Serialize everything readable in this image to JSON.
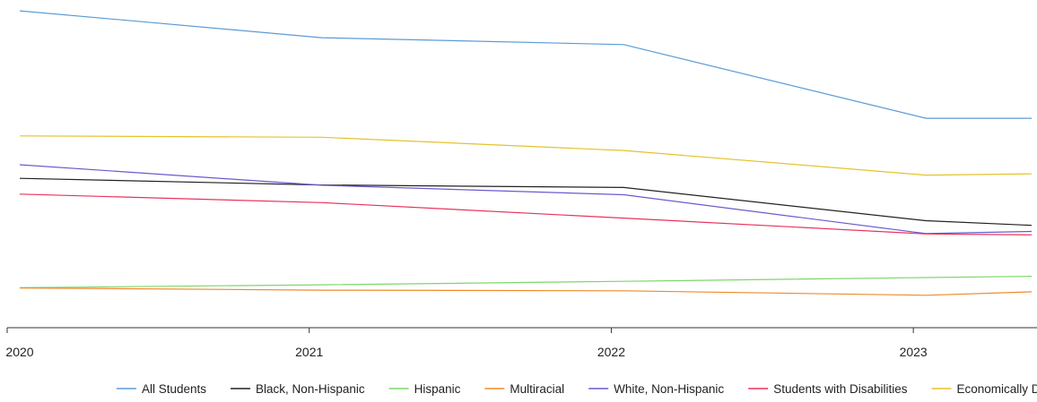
{
  "chart_data": {
    "type": "line",
    "title": "",
    "xlabel": "",
    "ylabel": "",
    "categories": [
      "2020",
      "2021",
      "2022",
      "2023"
    ],
    "x": [
      2020,
      2021,
      2022,
      2023,
      2023.35
    ],
    "xlim": [
      2020,
      2023.35
    ],
    "ylim": [
      0,
      100
    ],
    "grid": false,
    "legend_position": "bottom",
    "series": [
      {
        "name": "All Students",
        "color": "#5B9BD5",
        "values": [
          98,
          89.5,
          87.3,
          64,
          64
        ]
      },
      {
        "name": "Black, Non-Hispanic",
        "color": "#222222",
        "values": [
          45,
          42.9,
          42.1,
          31.6,
          30.1
        ]
      },
      {
        "name": "Hispanic",
        "color": "#7ED66C",
        "values": [
          10.4,
          11.3,
          12.4,
          13.6,
          14
        ]
      },
      {
        "name": "Multiracial",
        "color": "#ED8B2A",
        "values": [
          10.3,
          9.6,
          9.4,
          8,
          9.1
        ]
      },
      {
        "name": "White, Non-Hispanic",
        "color": "#6A5ACD",
        "values": [
          49.3,
          42.8,
          39.8,
          27.5,
          28.2
        ]
      },
      {
        "name": "Students with Disabilities",
        "color": "#E8335E",
        "values": [
          40,
          37.3,
          32.4,
          27.4,
          27.1
        ]
      },
      {
        "name": "Economically Disadvantaged",
        "color": "#E5C22E",
        "values": [
          58.4,
          58,
          53.8,
          46,
          46.4
        ]
      }
    ]
  }
}
